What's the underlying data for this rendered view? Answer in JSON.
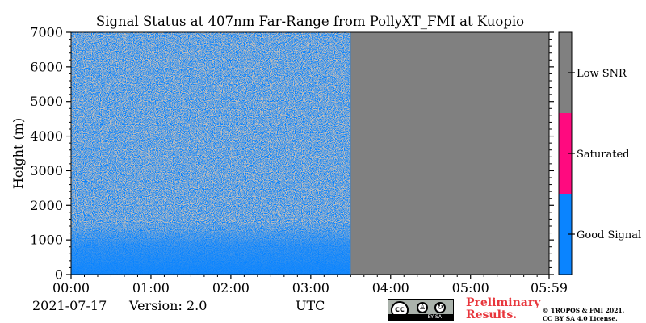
{
  "chart_data": {
    "type": "heatmap",
    "title": "Signal Status at 407nm Far-Range from PollyXT_FMI at Kuopio",
    "ylabel": "Height (m)",
    "xlabel": "UTC",
    "ylim": [
      0,
      7000
    ],
    "yticks": [
      "0",
      "1000",
      "2000",
      "3000",
      "4000",
      "5000",
      "6000",
      "7000"
    ],
    "xticks": [
      "00:00",
      "01:00",
      "02:00",
      "03:00",
      "04:00",
      "05:00",
      "05:59"
    ],
    "data_end_time": "03:30",
    "categories": [
      "Good Signal",
      "Saturated",
      "Low SNR"
    ],
    "colors": {
      "good_signal": "#0a84ff",
      "saturated": "#ff0a7f",
      "low_snr": "#808080"
    }
  },
  "footer": {
    "date": "2021-07-17",
    "version": "Version: 2.0",
    "preliminary_line1": "Preliminary",
    "preliminary_line2": "Results.",
    "copyright_line1": "© TROPOS & FMI 2021.",
    "copyright_line2": "CC BY SA 4.0 License.",
    "cc_logo_text": "cc",
    "cc_by_sa": "BY   SA"
  }
}
